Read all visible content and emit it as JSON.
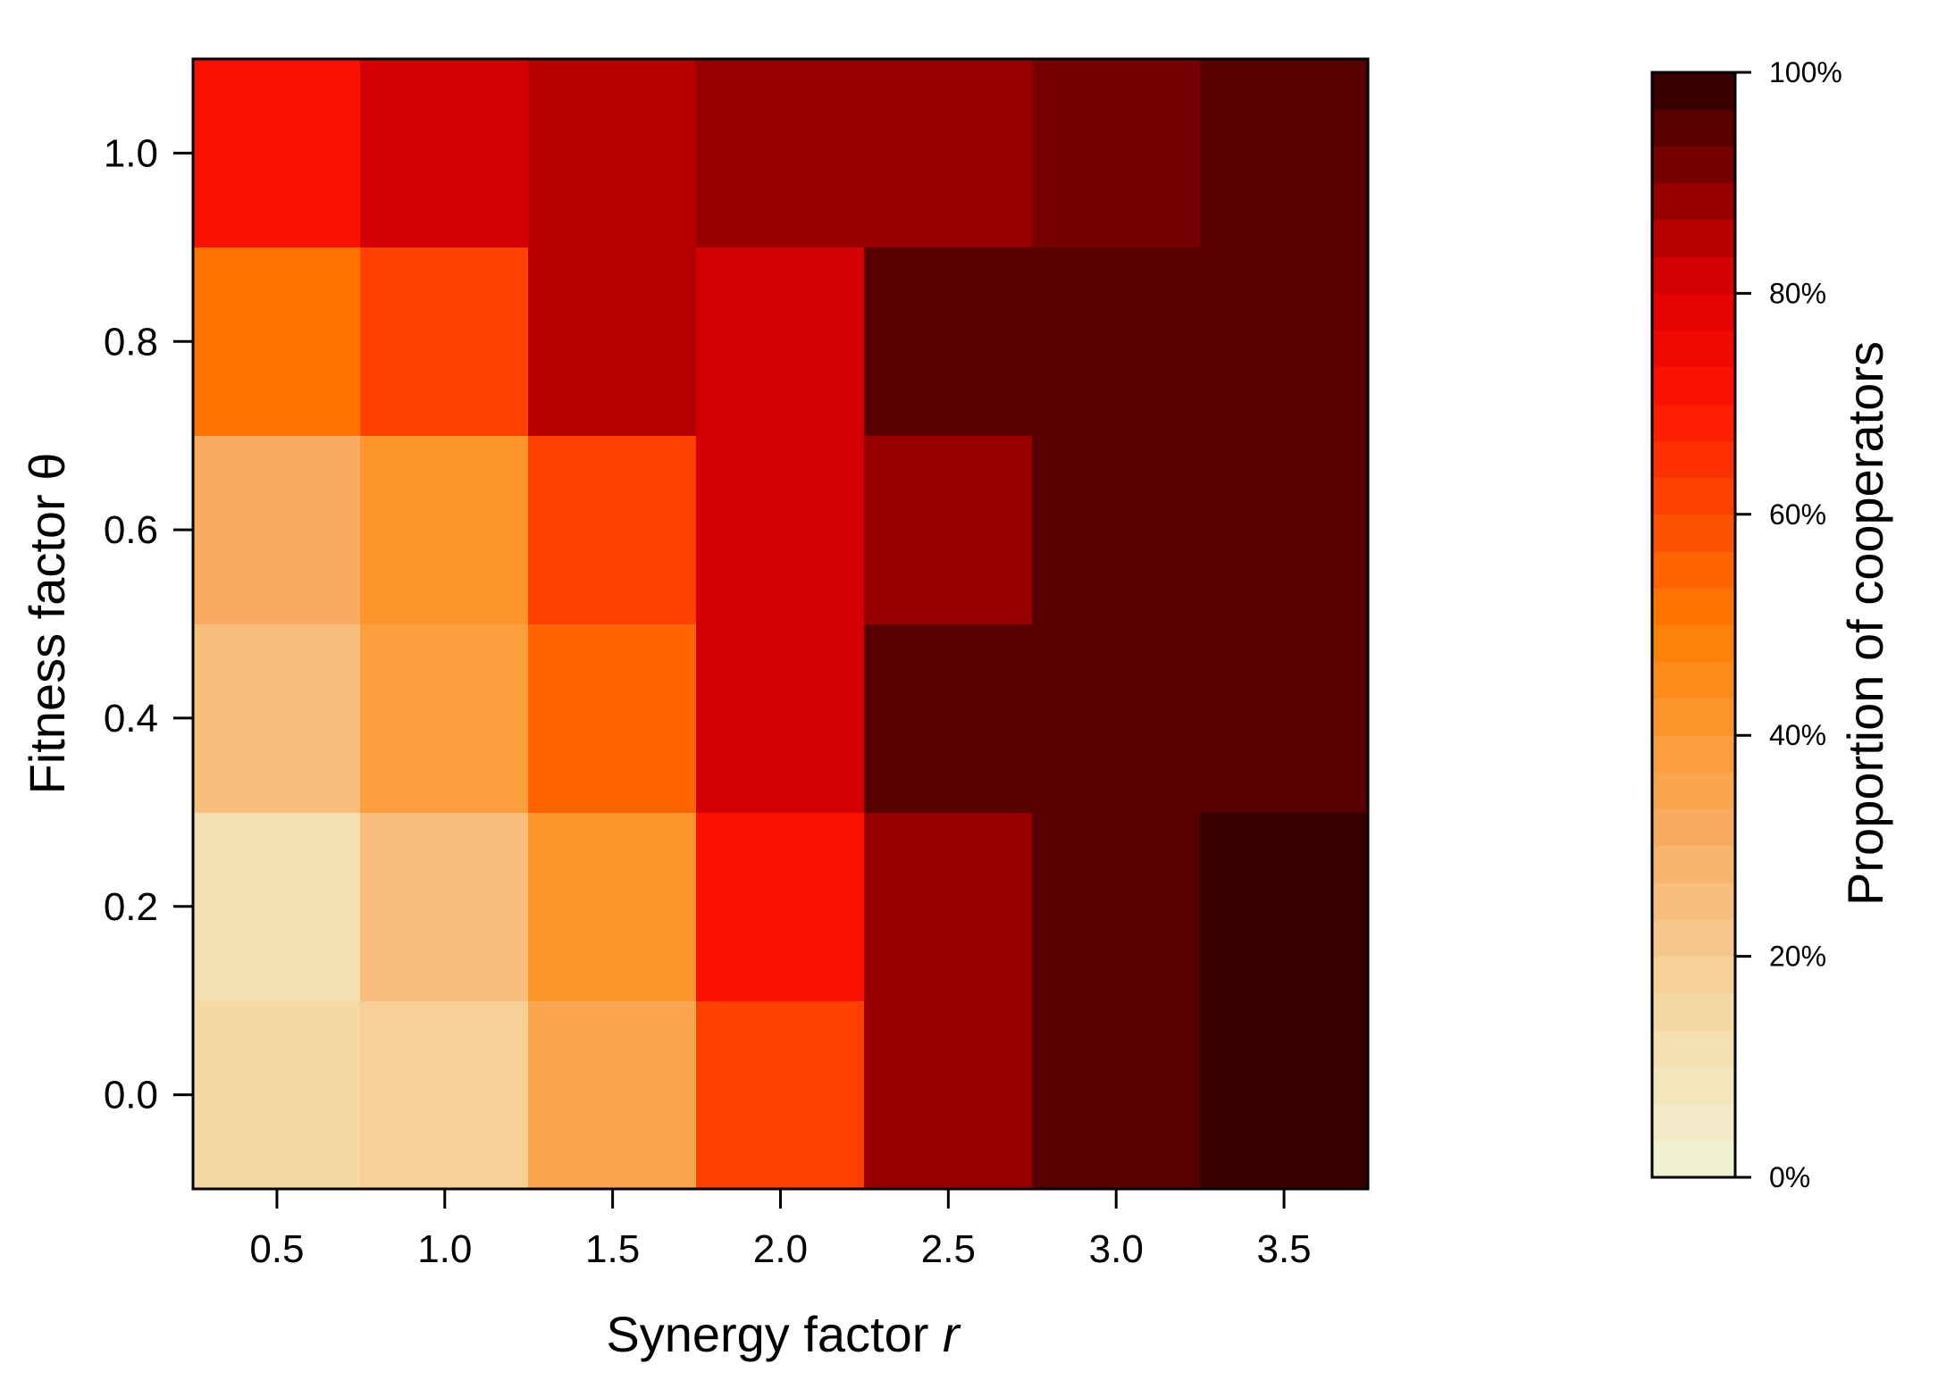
{
  "chart_data": {
    "type": "heatmap",
    "xlabel": "Synergy factor",
    "xlabel_var": "r",
    "ylabel": "Fitness factor θ",
    "x": [
      0.5,
      1.0,
      1.5,
      2.0,
      2.5,
      3.0,
      3.5
    ],
    "y": [
      0.0,
      0.2,
      0.4,
      0.6,
      0.8,
      1.0
    ],
    "x_tick_labels": [
      "0.5",
      "1.0",
      "1.5",
      "2.0",
      "2.5",
      "3.0",
      "3.5"
    ],
    "y_tick_labels": [
      "0.0",
      "0.2",
      "0.4",
      "0.6",
      "0.8",
      "1.0"
    ],
    "xlim": [
      0.25,
      3.75
    ],
    "ylim": [
      -0.1,
      1.1
    ],
    "values_percent": [
      [
        16,
        18,
        36,
        62,
        88,
        96,
        99
      ],
      [
        13,
        26,
        40,
        70,
        88,
        96,
        99
      ],
      [
        25,
        37,
        56,
        82,
        94,
        96,
        96
      ],
      [
        31,
        43,
        61,
        82,
        88,
        96,
        96
      ],
      [
        50,
        62,
        85,
        82,
        94,
        96,
        96
      ],
      [
        70,
        80,
        85,
        88,
        88,
        92,
        96
      ]
    ],
    "colorbar": {
      "label": "Proportion of cooperators",
      "range": [
        0,
        100
      ],
      "levels": 30,
      "ticks": [
        0,
        20,
        40,
        60,
        80,
        100
      ],
      "tick_labels": [
        "0%",
        "20%",
        "40%",
        "60%",
        "80%",
        "100%"
      ],
      "stops": [
        {
          "v": 0,
          "color": "#f2f2d8"
        },
        {
          "v": 10,
          "color": "#f3e3b8"
        },
        {
          "v": 20,
          "color": "#f6cc90"
        },
        {
          "v": 30,
          "color": "#f8b06a"
        },
        {
          "v": 40,
          "color": "#fb9a35"
        },
        {
          "v": 50,
          "color": "#ff7d00"
        },
        {
          "v": 60,
          "color": "#ff4a00"
        },
        {
          "v": 70,
          "color": "#ff1500"
        },
        {
          "v": 80,
          "color": "#e00000"
        },
        {
          "v": 87,
          "color": "#a50000"
        },
        {
          "v": 93,
          "color": "#6a0000"
        },
        {
          "v": 100,
          "color": "#2a0000"
        }
      ]
    }
  }
}
